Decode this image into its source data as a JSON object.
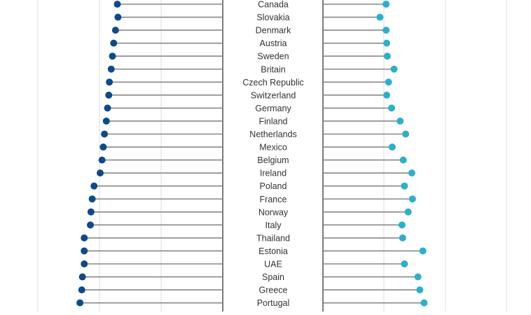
{
  "chart_data": {
    "type": "lollipop",
    "title": "",
    "subtitle": "",
    "xlabel": "",
    "ylabel": "",
    "grid": true,
    "colors": {
      "left": "#0d4a8a",
      "right": "#2bb0cc",
      "stem": "#888888",
      "grid": "#dddddd",
      "divider": "#222222",
      "label": "#333333"
    },
    "categories": [
      "Canada",
      "Slovakia",
      "Denmark",
      "Austria",
      "Sweden",
      "Britain",
      "Czech Republic",
      "Switzerland",
      "Germany",
      "Finland",
      "Netherlands",
      "Mexico",
      "Belgium",
      "Ireland",
      "Poland",
      "France",
      "Norway",
      "Italy",
      "Thailand",
      "Estonia",
      "UAE",
      "Spain",
      "Greece",
      "Portugal"
    ],
    "series": [
      {
        "side": "left",
        "values": [
          1.72,
          1.71,
          1.75,
          1.78,
          1.8,
          1.82,
          1.85,
          1.86,
          1.88,
          1.9,
          1.93,
          1.95,
          1.97,
          2.0,
          2.1,
          2.13,
          2.15,
          2.16,
          2.26,
          2.26,
          2.26,
          2.29,
          2.3,
          2.33
        ]
      },
      {
        "side": "right",
        "values": [
          1.03,
          0.93,
          1.03,
          1.04,
          1.05,
          1.16,
          1.07,
          1.04,
          1.12,
          1.26,
          1.35,
          1.13,
          1.31,
          1.45,
          1.33,
          1.46,
          1.39,
          1.29,
          1.3,
          1.63,
          1.33,
          1.55,
          1.58,
          1.65
        ]
      }
    ]
  }
}
